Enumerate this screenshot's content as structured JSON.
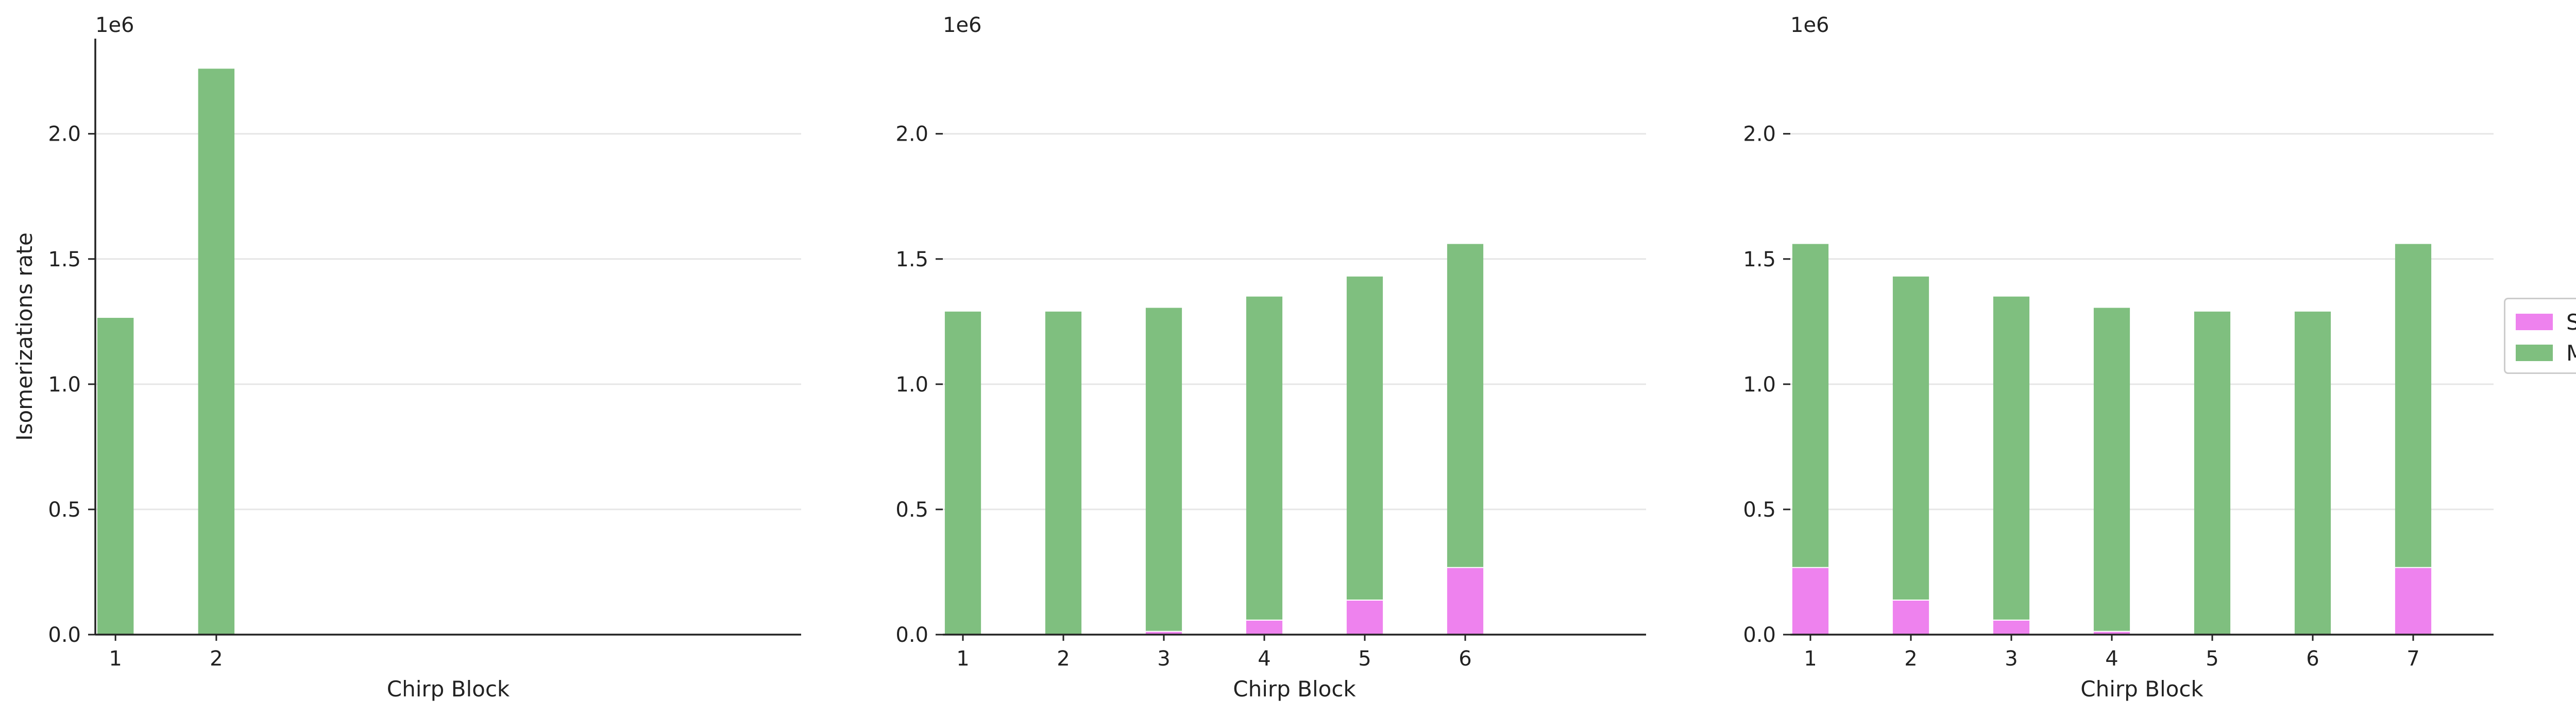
{
  "chart_data": [
    {
      "type": "bar",
      "stacked": true,
      "categories": [
        "1",
        "2"
      ],
      "series": [
        {
          "name": "Sc",
          "values": [
            0,
            0
          ]
        },
        {
          "name": "Mc",
          "values": [
            1265000,
            2260000
          ]
        }
      ],
      "offset_label": "1e6",
      "xlabel": "Chirp Block",
      "ylabel": "Isomerizations rate",
      "ylim": [
        0,
        2380000
      ],
      "yticks": [
        "0.0",
        "0.5",
        "1.0",
        "1.5",
        "2.0"
      ],
      "ytick_values": [
        0,
        500000,
        1000000,
        1500000,
        2000000
      ],
      "xslots": 7,
      "grid": "y"
    },
    {
      "type": "bar",
      "stacked": true,
      "categories": [
        "1",
        "2",
        "3",
        "4",
        "5",
        "6"
      ],
      "series": [
        {
          "name": "Sc",
          "values": [
            0,
            0,
            15000,
            60000,
            140000,
            270000
          ]
        },
        {
          "name": "Mc",
          "values": [
            1290000,
            1290000,
            1290000,
            1290000,
            1290000,
            1290000
          ]
        }
      ],
      "offset_label": "1e6",
      "xlabel": "Chirp Block",
      "ylabel": "",
      "ylim": [
        0,
        2380000
      ],
      "yticks": [
        "0.0",
        "0.5",
        "1.0",
        "1.5",
        "2.0"
      ],
      "ytick_values": [
        0,
        500000,
        1000000,
        1500000,
        2000000
      ],
      "xslots": 7,
      "grid": "y"
    },
    {
      "type": "bar",
      "stacked": true,
      "categories": [
        "1",
        "2",
        "3",
        "4",
        "5",
        "6",
        "7"
      ],
      "series": [
        {
          "name": "Sc",
          "values": [
            270000,
            140000,
            60000,
            15000,
            0,
            0,
            270000
          ]
        },
        {
          "name": "Mc",
          "values": [
            1290000,
            1290000,
            1290000,
            1290000,
            1290000,
            1290000,
            1290000
          ]
        }
      ],
      "offset_label": "1e6",
      "xlabel": "Chirp Block",
      "ylabel": "",
      "ylim": [
        0,
        2380000
      ],
      "yticks": [
        "0.0",
        "0.5",
        "1.0",
        "1.5",
        "2.0"
      ],
      "ytick_values": [
        0,
        500000,
        1000000,
        1500000,
        2000000
      ],
      "xslots": 7,
      "grid": "y"
    }
  ],
  "legend": {
    "placement": "right",
    "items": [
      {
        "name": "Sc",
        "color": "#ee82ee"
      },
      {
        "name": "Mc",
        "color": "#7fbf7f"
      }
    ]
  },
  "colors": {
    "sc": "#ee82ee",
    "mc": "#7fbf7f",
    "grid": "#e6e6e6",
    "axis": "#222222"
  }
}
